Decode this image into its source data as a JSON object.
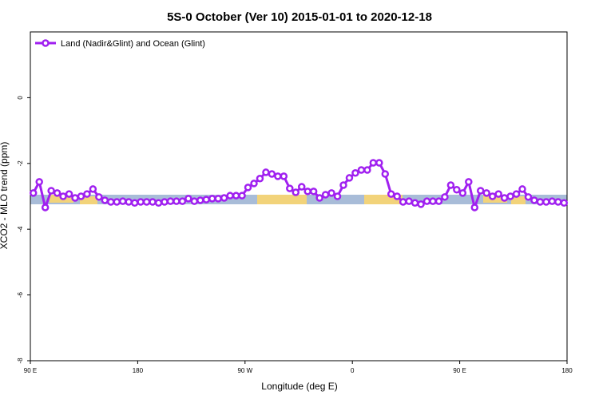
{
  "chart_data": {
    "type": "line",
    "title": "5S-0 October (Ver 10)   2015-01-01 to 2020-12-18",
    "x_label": "Longitude (deg E)",
    "y_label": "XCO2 - MLO trend (ppm)",
    "x": [
      92.5,
      97.5,
      102.5,
      107.5,
      112.5,
      117.5,
      122.5,
      127.5,
      132.5,
      137.5,
      142.5,
      147.5,
      152.5,
      157.5,
      162.5,
      167.5,
      172.5,
      177.5,
      182.5,
      187.5,
      192.5,
      197.5,
      202.5,
      207.5,
      212.5,
      217.5,
      222.5,
      227.5,
      232.5,
      237.5,
      242.5,
      247.5,
      252.5,
      257.5,
      262.5,
      267.5,
      272.5,
      277.5,
      282.5,
      287.5,
      292.5,
      297.5,
      302.5,
      307.5,
      312.5,
      317.5,
      322.5,
      327.5,
      332.5,
      337.5,
      342.5,
      347.5,
      352.5,
      357.5,
      362.5,
      367.5,
      372.5,
      377.5,
      382.5,
      387.5,
      392.5,
      397.5,
      402.5,
      407.5,
      412.5,
      417.5,
      422.5,
      427.5,
      432.5,
      437.5,
      442.5,
      447.5,
      452.5,
      457.5,
      462.5,
      467.5,
      472.5,
      477.5,
      482.5,
      487.5,
      492.5,
      497.5,
      502.5,
      507.5,
      512.5,
      517.5,
      522.5,
      527.5,
      532.5,
      537.5
    ],
    "series": [
      {
        "name": "Land (Nadir&Glint) and Ocean (Glint)",
        "color": "#a020f0",
        "values": [
          -2.9,
          -2.56,
          -3.34,
          -2.83,
          -2.9,
          -3.0,
          -2.93,
          -3.05,
          -3.0,
          -2.93,
          -2.78,
          -3.02,
          -3.12,
          -3.17,
          -3.17,
          -3.15,
          -3.17,
          -3.2,
          -3.17,
          -3.17,
          -3.17,
          -3.2,
          -3.17,
          -3.15,
          -3.15,
          -3.15,
          -3.07,
          -3.15,
          -3.12,
          -3.1,
          -3.07,
          -3.07,
          -3.05,
          -2.98,
          -2.98,
          -2.98,
          -2.73,
          -2.61,
          -2.46,
          -2.27,
          -2.32,
          -2.39,
          -2.39,
          -2.76,
          -2.88,
          -2.71,
          -2.85,
          -2.85,
          -3.05,
          -2.95,
          -2.9,
          -3.0,
          -2.66,
          -2.44,
          -2.29,
          -2.2,
          -2.2,
          -1.98,
          -1.98,
          -2.32,
          -2.93,
          -3.0,
          -3.17,
          -3.15,
          -3.2,
          -3.24,
          -3.15,
          -3.15,
          -3.15,
          -3.02,
          -2.66,
          -2.8,
          -2.9,
          -2.56,
          -3.34,
          -2.83,
          -2.9,
          -3.0,
          -2.93,
          -3.05,
          -3.0,
          -2.93,
          -2.78,
          -3.02,
          -3.12,
          -3.17,
          -3.17,
          -3.15,
          -3.17,
          -3.2
        ]
      }
    ],
    "xlim": [
      90,
      540
    ],
    "xticks": [
      {
        "value": 90,
        "label": "90 E"
      },
      180,
      {
        "value": 270,
        "label": "90 W"
      },
      {
        "value": 360,
        "label": "0"
      },
      {
        "value": 450,
        "label": "90 E"
      },
      {
        "value": 540,
        "label": "180"
      }
    ],
    "ylim": [
      -8,
      2
    ],
    "yticks": [
      -8,
      -6,
      -4,
      -2,
      0
    ],
    "legend": "top-left"
  }
}
